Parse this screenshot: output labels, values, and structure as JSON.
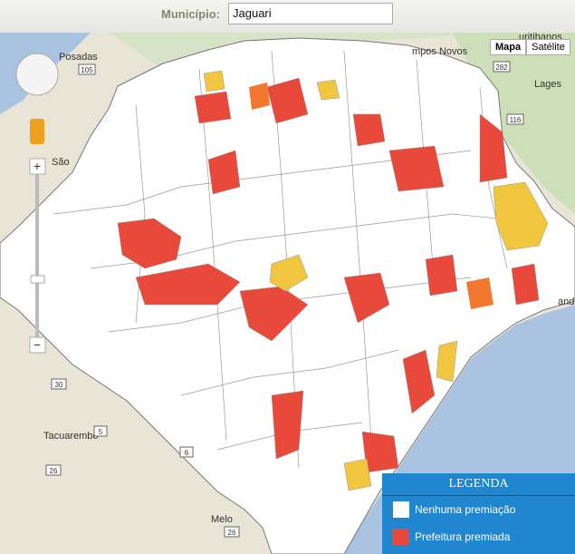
{
  "toolbar": {
    "label": "Município:",
    "value": "Jaguari"
  },
  "map_type": {
    "map": "Mapa",
    "satellite": "Satélite"
  },
  "places": {
    "posadas": "Posadas",
    "campos_novos": "mpos Novos",
    "lages": "Lages",
    "sao": "São",
    "tacuarembo": "Tacuarembó",
    "melo": "Melo",
    "curitibanos": "uritibanos",
    "laguna": "andá"
  },
  "routes": [
    "105",
    "282",
    "116",
    "30",
    "5",
    "6",
    "26",
    "26"
  ],
  "zoom": {
    "plus": "+",
    "minus": "−"
  },
  "legend": {
    "title": "LEGENDA",
    "items": [
      "Nenhuma premiação",
      "Prefeitura premiada"
    ]
  }
}
